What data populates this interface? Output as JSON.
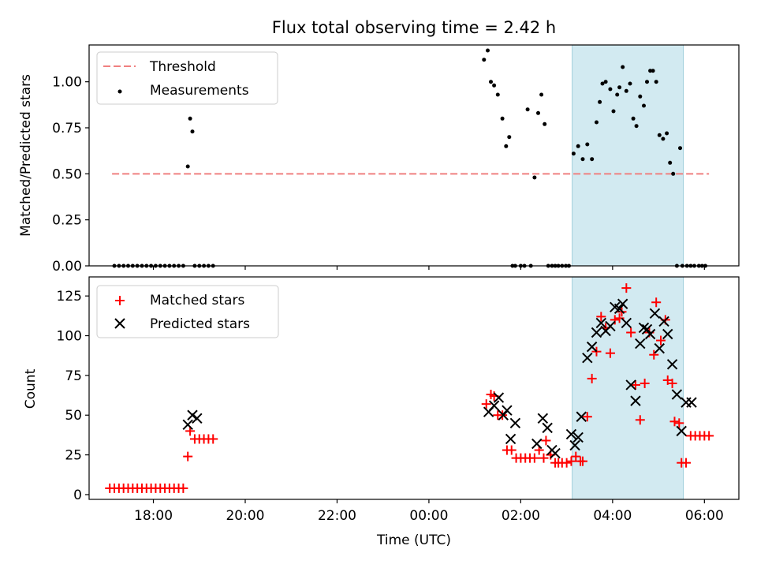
{
  "chart_data": [
    {
      "type": "scatter",
      "title": "Flux total observing time = 2.42 h",
      "ylabel": "Matched/Predicted stars",
      "xlabel": "",
      "xlim_hours": [
        -7.4,
        6.75
      ],
      "ylim": [
        0,
        1.2
      ],
      "yticks": [
        0.0,
        0.25,
        0.5,
        0.75,
        1.0
      ],
      "ytick_labels": [
        "0.00",
        "0.25",
        "0.50",
        "0.75",
        "1.00"
      ],
      "legend_position": "top-left",
      "shaded_window_hours": [
        3.12,
        5.54
      ],
      "shade_color": "#add8e6",
      "threshold": {
        "name": "Threshold",
        "value": 0.5,
        "x_range_hours": [
          -6.9,
          6.1
        ],
        "color": "#f08080"
      },
      "series": [
        {
          "name": "Measurements",
          "color": "#000000",
          "x": [
            -6.85,
            -6.75,
            -6.65,
            -6.55,
            -6.45,
            -6.35,
            -6.25,
            -6.15,
            -6.05,
            -5.95,
            -5.85,
            -5.75,
            -5.65,
            -5.55,
            -5.45,
            -5.35,
            -5.25,
            -5.2,
            -5.15,
            -5.1,
            -5.0,
            -4.9,
            -4.8,
            -4.7,
            1.2,
            1.28,
            1.35,
            1.42,
            1.5,
            1.6,
            1.68,
            1.75,
            1.82,
            1.88,
            2.0,
            2.08,
            2.15,
            2.22,
            2.3,
            2.38,
            2.45,
            2.52,
            2.6,
            2.68,
            2.75,
            2.82,
            2.9,
            2.98,
            3.05,
            3.15,
            3.25,
            3.35,
            3.45,
            3.55,
            3.65,
            3.72,
            3.78,
            3.85,
            3.95,
            4.02,
            4.1,
            4.15,
            4.22,
            4.3,
            4.38,
            4.45,
            4.52,
            4.6,
            4.68,
            4.75,
            4.82,
            4.88,
            4.95,
            5.02,
            5.1,
            5.18,
            5.25,
            5.32,
            5.4,
            5.47,
            5.52,
            5.62,
            5.7,
            5.78,
            5.88,
            5.95,
            6.02
          ],
          "y": [
            0,
            0,
            0,
            0,
            0,
            0,
            0,
            0,
            0,
            0,
            0,
            0,
            0,
            0,
            0,
            0,
            0.54,
            0.8,
            0.73,
            0,
            0,
            0,
            0,
            0,
            1.12,
            1.17,
            1.0,
            0.98,
            0.93,
            0.8,
            0.65,
            0.7,
            0,
            0,
            0,
            0,
            0.85,
            0,
            0.48,
            0.83,
            0.93,
            0.77,
            0,
            0,
            0,
            0,
            0,
            0,
            0,
            0.61,
            0.65,
            0.58,
            0.66,
            0.58,
            0.78,
            0.89,
            0.99,
            1.0,
            0.96,
            0.84,
            0.93,
            0.97,
            1.08,
            0.95,
            0.99,
            0.8,
            0.76,
            0.92,
            0.87,
            1.0,
            1.06,
            1.06,
            1.0,
            0.71,
            0.69,
            0.72,
            0.56,
            0.5,
            0,
            0.64,
            0,
            0,
            0,
            0,
            0,
            0,
            0
          ]
        }
      ]
    },
    {
      "type": "scatter",
      "title": "",
      "ylabel": "Count",
      "xlabel": "Time (UTC)",
      "xlim_hours": [
        -7.4,
        6.75
      ],
      "ylim": [
        -3,
        137
      ],
      "yticks": [
        0,
        25,
        50,
        75,
        100,
        125
      ],
      "ytick_labels": [
        "0",
        "25",
        "50",
        "75",
        "100",
        "125"
      ],
      "xticks_hours": [
        -6,
        -4,
        -2,
        0,
        2,
        4,
        6
      ],
      "xtick_labels": [
        "18:00",
        "20:00",
        "22:00",
        "00:00",
        "02:00",
        "04:00",
        "06:00"
      ],
      "legend_position": "top-left",
      "shaded_window_hours": [
        3.12,
        5.54
      ],
      "shade_color": "#add8e6",
      "series": [
        {
          "name": "Matched stars",
          "marker": "plus",
          "color": "#ff0000",
          "x": [
            -6.95,
            -6.85,
            -6.75,
            -6.65,
            -6.55,
            -6.45,
            -6.35,
            -6.25,
            -6.15,
            -6.05,
            -5.95,
            -5.85,
            -5.75,
            -5.65,
            -5.55,
            -5.45,
            -5.35,
            -5.25,
            -5.2,
            -5.1,
            -5.0,
            -4.9,
            -4.8,
            -4.7,
            1.25,
            1.35,
            1.42,
            1.5,
            1.6,
            1.7,
            1.8,
            1.9,
            2.0,
            2.1,
            2.2,
            2.3,
            2.4,
            2.5,
            2.55,
            2.65,
            2.75,
            2.82,
            2.9,
            3.0,
            3.1,
            3.2,
            3.3,
            3.35,
            3.45,
            3.55,
            3.65,
            3.75,
            3.85,
            3.95,
            4.05,
            4.15,
            4.2,
            4.3,
            4.4,
            4.5,
            4.6,
            4.7,
            4.8,
            4.9,
            4.95,
            5.05,
            5.15,
            5.2,
            5.3,
            5.35,
            5.45,
            5.5,
            5.6,
            5.7,
            5.8,
            5.9,
            6.0,
            6.1
          ],
          "y": [
            4,
            4,
            4,
            4,
            4,
            4,
            4,
            4,
            4,
            4,
            4,
            4,
            4,
            4,
            4,
            4,
            4,
            24,
            40,
            35,
            35,
            35,
            35,
            35,
            57,
            63,
            62,
            50,
            50,
            28,
            28,
            23,
            23,
            23,
            23,
            23,
            28,
            23,
            34,
            25,
            20,
            20,
            20,
            20,
            21,
            24,
            21,
            21,
            49,
            73,
            90,
            112,
            105,
            89,
            110,
            111,
            115,
            130,
            102,
            69,
            47,
            70,
            102,
            88,
            121,
            97,
            110,
            72,
            70,
            46,
            45,
            20,
            20,
            37,
            37,
            37,
            37,
            37
          ]
        },
        {
          "name": "Predicted stars",
          "marker": "x",
          "color": "#000000",
          "x": [
            -5.25,
            -5.15,
            -5.05,
            1.3,
            1.42,
            1.52,
            1.62,
            1.7,
            1.78,
            1.88,
            2.35,
            2.48,
            2.58,
            2.68,
            2.75,
            3.1,
            3.18,
            3.25,
            3.32,
            3.45,
            3.55,
            3.65,
            3.75,
            3.85,
            3.95,
            4.05,
            4.15,
            4.22,
            4.3,
            4.4,
            4.5,
            4.6,
            4.68,
            4.75,
            4.82,
            4.92,
            5.02,
            5.12,
            5.2,
            5.3,
            5.4,
            5.5,
            5.6,
            5.72
          ],
          "y": [
            44,
            50,
            48,
            52,
            56,
            61,
            50,
            53,
            35,
            45,
            32,
            48,
            42,
            28,
            26,
            38,
            31,
            36,
            49,
            86,
            93,
            102,
            108,
            103,
            106,
            118,
            117,
            120,
            108,
            69,
            59,
            95,
            105,
            104,
            101,
            114,
            92,
            109,
            101,
            82,
            63,
            40,
            58,
            58
          ]
        }
      ]
    }
  ],
  "legend": {
    "threshold_label": "Threshold",
    "measurements_label": "Measurements",
    "matched_label": "Matched stars",
    "predicted_label": "Predicted stars"
  }
}
